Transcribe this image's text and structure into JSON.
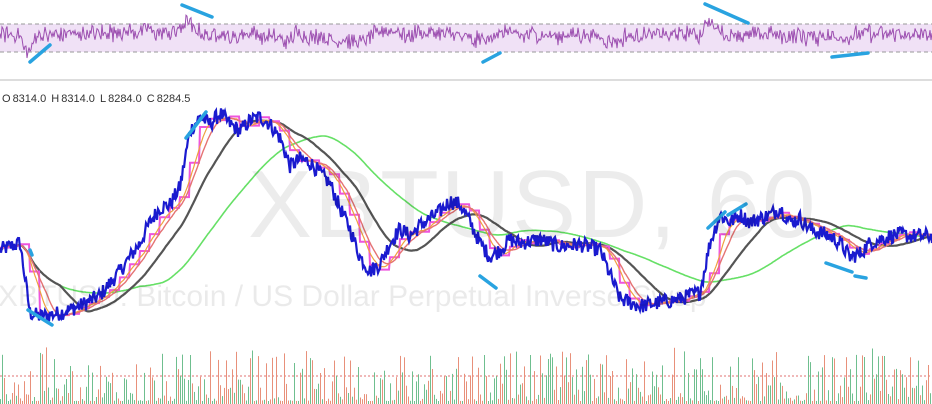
{
  "chart_data": {
    "type": "line",
    "watermark_symbol": "XBTUSD, 60",
    "watermark_description": "XBTUSD: Bitcoin / US Dollar Perpetual Inverse Swap",
    "ohlc": {
      "o_label": "O",
      "o": "8314.0",
      "h_label": "H",
      "h": "8314.0",
      "l_label": "L",
      "l": "8284.0",
      "c_label": "C",
      "c": "8284.5"
    },
    "colors": {
      "price": "#1a1acf",
      "ma_fast": "#e57373",
      "ma_mid": "#f0a040",
      "ma_magenta": "#ee55dd",
      "ma_slow": "#555555",
      "ma_green": "#66e066",
      "rsi": "#9c4fb0",
      "annotation": "#29a3e0"
    },
    "price": {
      "x": [
        0,
        20,
        30,
        40,
        60,
        80,
        100,
        120,
        140,
        150,
        160,
        170,
        180,
        190,
        200,
        210,
        220,
        230,
        240,
        250,
        260,
        270,
        280,
        290,
        300,
        310,
        320,
        330,
        340,
        350,
        360,
        370,
        380,
        390,
        400,
        410,
        420,
        430,
        440,
        450,
        460,
        470,
        480,
        490,
        500,
        510,
        520,
        540,
        560,
        580,
        600,
        620,
        640,
        660,
        680,
        700,
        710,
        720,
        730,
        740,
        750,
        760,
        770,
        780,
        790,
        800,
        810,
        820,
        830,
        840,
        850,
        860,
        870,
        880,
        890,
        900,
        910,
        932
      ],
      "y": [
        8330,
        8340,
        8240,
        8235,
        8240,
        8250,
        8265,
        8300,
        8340,
        8370,
        8390,
        8395,
        8420,
        8500,
        8520,
        8510,
        8525,
        8510,
        8500,
        8515,
        8520,
        8510,
        8490,
        8450,
        8460,
        8455,
        8440,
        8425,
        8390,
        8360,
        8320,
        8300,
        8310,
        8340,
        8360,
        8350,
        8365,
        8375,
        8385,
        8400,
        8395,
        8370,
        8340,
        8320,
        8330,
        8345,
        8340,
        8345,
        8335,
        8338,
        8330,
        8260,
        8250,
        8255,
        8260,
        8270,
        8340,
        8380,
        8370,
        8380,
        8370,
        8375,
        8380,
        8390,
        8370,
        8375,
        8360,
        8355,
        8350,
        8340,
        8320,
        8325,
        8340,
        8345,
        8350,
        8352,
        8350,
        8350
      ]
    },
    "rsi": {
      "ylim": [
        0,
        100
      ],
      "levels": [
        70,
        30
      ]
    },
    "annotations_count": 13
  }
}
